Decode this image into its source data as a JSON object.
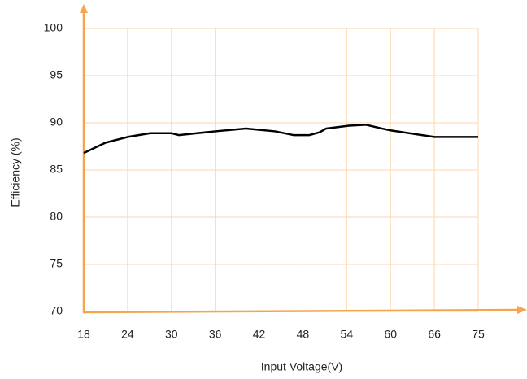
{
  "chart_data": {
    "type": "line",
    "x_label": "Input Voltage(V)",
    "y_label": "Efficiency (%)",
    "series": [
      {
        "color": "#000000",
        "x": [
          18,
          21,
          24,
          27.1,
          30,
          31,
          36,
          40.2,
          44.2,
          46.7,
          48.9,
          50.3,
          51.2,
          54.3,
          56.6,
          58.8,
          60,
          66,
          75
        ],
        "values": [
          86.8,
          87.9,
          88.5,
          88.9,
          88.9,
          88.7,
          89.1,
          89.4,
          89.1,
          88.7,
          88.7,
          89.0,
          89.4,
          89.7,
          89.8,
          89.4,
          89.2,
          88.5,
          88.5
        ]
      }
    ],
    "xlim": [
      18,
      75
    ],
    "xticks": [
      18,
      24,
      30,
      36,
      42,
      48,
      54,
      60,
      66,
      75
    ],
    "ylim": [
      70,
      100
    ],
    "yticks": [
      70,
      75,
      80,
      85,
      90,
      95,
      100
    ],
    "grid": true,
    "grid_color": "#fbd7b0",
    "axis_color": "#f5a64c"
  }
}
